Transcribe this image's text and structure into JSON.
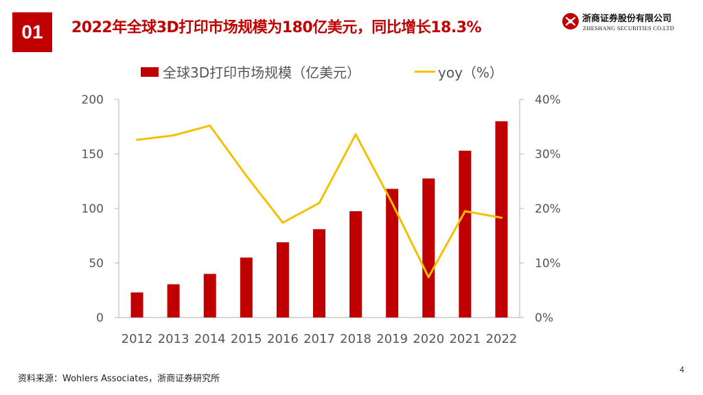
{
  "slide": {
    "number": "01",
    "title": "2022年全球3D打印市场规模为180亿美元，同比增长18.3%",
    "page": "4"
  },
  "logo": {
    "cn": "浙商证券股份有限公司",
    "en": "ZHESHANG SECURITIES CO.LTD"
  },
  "source": "资料来源：Wohlers Associates，浙商证券研究所",
  "colors": {
    "bar": "#c00000",
    "line": "#f5c000",
    "accent": "#c00000"
  },
  "chart_data": {
    "type": "bar+line",
    "categories": [
      "2012",
      "2013",
      "2014",
      "2015",
      "2016",
      "2017",
      "2018",
      "2019",
      "2020",
      "2021",
      "2022"
    ],
    "series": [
      {
        "name": "全球3D打印市场规模（亿美元）",
        "type": "bar",
        "axis": "left",
        "values": [
          23,
          30.5,
          40,
          55,
          69,
          81,
          97.5,
          118,
          127.5,
          153,
          180
        ]
      },
      {
        "name": "yoy（%）",
        "type": "line",
        "axis": "right",
        "values": [
          32.6,
          33.4,
          35.2,
          26.0,
          17.4,
          21.0,
          33.6,
          21.0,
          7.4,
          19.5,
          18.3
        ]
      }
    ],
    "y_left": {
      "min": 0,
      "max": 200,
      "ticks": [
        "0",
        "50",
        "100",
        "150",
        "200"
      ]
    },
    "y_right": {
      "min": 0,
      "max": 40,
      "ticks": [
        "0%",
        "10%",
        "20%",
        "30%",
        "40%"
      ]
    },
    "legend_position": "top"
  }
}
